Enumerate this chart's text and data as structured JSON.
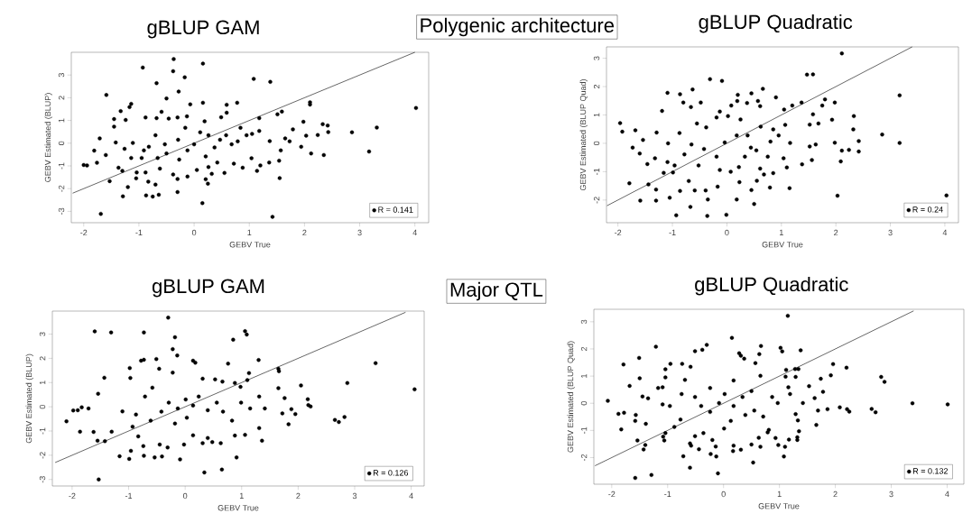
{
  "chart_data": [
    {
      "type": "scatter",
      "title": "gBLUP GAM",
      "xlabel": "GEBV True",
      "ylabel": "GEBV Estimated (BLUP)",
      "xlim": [
        -2.225,
        4.25
      ],
      "ylim": [
        -3.5,
        4.0
      ],
      "xticks": [
        -2,
        -1,
        0,
        1,
        2,
        3,
        4
      ],
      "yticks": [
        -3,
        -2,
        -1,
        0,
        1,
        2,
        3
      ],
      "legend": "bottom right",
      "annotations": [
        "Polygenic architecture"
      ],
      "series": [
        {
          "name": "R = 0.141",
          "color": "#000000",
          "x": [
            -0.93,
            -0.37,
            -0.38,
            0.16,
            -0.17,
            -0.68,
            -0.28,
            -0.5,
            -1.59,
            1.08,
            1.38,
            2.1,
            2.1,
            4.02,
            3.31,
            2.86,
            3.17,
            2.33,
            2.42,
            2.43,
            2.35,
            2.24,
            2.12,
            1.98,
            2.03,
            1.79,
            1.94,
            1.59,
            1.51,
            1.55,
            1.42,
            0.15,
            -1.69,
            -1.29,
            -1.2,
            -0.87,
            -0.75,
            -0.64,
            -0.3,
            -0.83,
            -0.7,
            -0.88,
            -1.04,
            -1.53,
            -2.0,
            -1.94,
            -1.76,
            -1.81,
            -1.71,
            -1.6,
            -1.42,
            -1.45,
            -1.45,
            -1.33,
            -1.17,
            -1.14,
            -1.24,
            -0.88,
            -0.68,
            -0.46,
            -0.59,
            -0.3,
            -0.13,
            -0.07,
            0.16,
            0.59,
            0.59,
            0.78,
            0.49,
            0.19,
            1.18,
            1.18,
            1.05,
            0.84,
            1.37,
            1.65,
            1.73,
            1.57,
            1.54,
            1.36,
            1.2,
            1.14,
            1.04,
            0.88,
            0.72,
            0.55,
            0.32,
            0.25,
            0.21,
            0.26,
            0.05,
            -0.12,
            -0.3,
            -0.38,
            -0.62,
            -1.05,
            -1.37,
            -1.3,
            -1.14,
            -1.26,
            -1.11,
            -0.95,
            -0.82,
            -0.66,
            -0.5,
            -0.29,
            -0.12,
            0,
            0.11,
            0.26,
            0.37,
            0.47,
            0.58,
            0.68,
            0.79,
            0.95,
            -0.53,
            -0.7,
            -0.91,
            -0.27,
            0.21,
            0.42,
            -0.16
          ],
          "values": [
            3.33,
            3.7,
            3.17,
            3.5,
            2.9,
            2.64,
            2.27,
            1.97,
            2.12,
            2.83,
            2.7,
            1.8,
            1.7,
            1.55,
            0.69,
            0.48,
            -0.37,
            0.84,
            0.78,
            0.49,
            -0.52,
            0.36,
            -0.45,
            0.94,
            0.33,
            0.61,
            -0.16,
            1.39,
            1.27,
            -1.54,
            -3.24,
            -2.64,
            -3.11,
            -2.34,
            -1.93,
            -2.3,
            -2.35,
            -2.27,
            -2.15,
            -1.69,
            -1.82,
            -1.29,
            -1.29,
            -1.67,
            -0.96,
            -0.98,
            -0.86,
            -0.33,
            0.21,
            -0.52,
            0.03,
            0.73,
            1.06,
            1.41,
            1.59,
            1.73,
            1.02,
            1.13,
            1.1,
            1.08,
            1.38,
            1.13,
            1.18,
            1.71,
            1.78,
            1.69,
            1.34,
            1.78,
            1.14,
            0.96,
            1.1,
            0.54,
            0.41,
            0.68,
            0.09,
            0.21,
            0.08,
            -0.32,
            -0.77,
            -0.85,
            -0.98,
            -1.22,
            -0.66,
            -1.08,
            -0.9,
            -1.31,
            -1.35,
            -1.78,
            -1.59,
            -1.05,
            -1.18,
            -1.47,
            -1.58,
            -1.38,
            -1.12,
            -1.55,
            -1.08,
            -1.22,
            -0.65,
            -0.25,
            0.01,
            -0.65,
            -0.16,
            -0.65,
            -0.45,
            0.15,
            -0.32,
            -0.05,
            0.48,
            0.35,
            -0.19,
            0.15,
            0.35,
            -0.05,
            0.08,
            0.35,
            -0.05,
            0.35,
            -0.32,
            -0.72,
            -0.58,
            -0.85,
            0.68
          ]
        },
        {
          "type": "line",
          "color": "#000000",
          "x": [
            -2.2,
            4.0
          ],
          "values": [
            -2.2,
            4.0
          ]
        }
      ]
    },
    {
      "type": "scatter",
      "title": "gBLUP Quadratic",
      "xlabel": "GEBV True",
      "ylabel": "GEBV Estimated (BLUP Quad)",
      "xlim": [
        -2.21,
        4.25
      ],
      "ylim": [
        -2.8,
        3.4
      ],
      "xticks": [
        -2,
        -1,
        0,
        1,
        2,
        3,
        4
      ],
      "yticks": [
        -2,
        -1,
        0,
        1,
        2,
        3
      ],
      "legend": "bottom right",
      "series": [
        {
          "name": "R = 0.24",
          "color": "#000000",
          "x": [
            2.11,
            3.17,
            4.03,
            2.03,
            1.58,
            1.47,
            1.98,
            1.8,
            1.75,
            1.93,
            2.33,
            2.32,
            2.42,
            2.42,
            2.24,
            2.11,
            2.09,
            1.98,
            2.85,
            3.17,
            1.58,
            1.68,
            1.52,
            1.63,
            1.52,
            1.56,
            1.38,
            1.15,
            1.1,
            1.04,
            1.37,
            1.2,
            1.05,
            0.9,
            0.66,
            0.45,
            -0.09,
            -0.31,
            -0.63,
            -0.86,
            -1.09,
            -1.19,
            -1.96,
            -1.92,
            -1.73,
            -1.79,
            -1.59,
            -1.3,
            -1.05,
            -0.93,
            -0.67,
            -0.36,
            -0.35,
            -0.01,
            0.18,
            0.5,
            0.45,
            0.79,
            0.55,
            -0.17,
            -0.39,
            -0.59,
            -0.7,
            -0.86,
            -1.3,
            -1.44,
            -1.16,
            -1.09,
            -0.96,
            -1.32,
            -1.46,
            -1.6,
            -1.68,
            -1.54,
            -1.29,
            -1.08,
            -0.87,
            -0.8,
            -0.66,
            -0.48,
            -0.55,
            -0.38,
            -0.19,
            -0.13,
            0.02,
            0.08,
            0.2,
            0.19,
            0.37,
            0.57,
            0.61,
            0.25,
            0.18,
            -0.04,
            -0.19,
            -0.42,
            -0.65,
            -0.78,
            -0.52,
            -0.13,
            0.07,
            0.22,
            0.33,
            0.44,
            0.54,
            0.75,
            0.61,
            0.68,
            0.85,
            0.8,
            0.95,
            0.85,
            1.16,
            1.07,
            0.62,
            0.38,
            0.23,
            -0.99
          ],
          "values": [
            3.17,
            1.69,
            -1.84,
            -1.85,
            2.43,
            2.42,
            1.44,
            1.55,
            1.33,
            0.83,
            0.96,
            0.49,
            0.08,
            -0.29,
            -0.23,
            -0.26,
            -0.64,
            0.02,
            0.31,
            0.01,
            1.02,
            0.7,
            0.66,
            -0.04,
            -0.11,
            -0.59,
            -0.74,
            -1.58,
            -0.85,
            -0.53,
            1.44,
            1.33,
            1.19,
            1.62,
            1.92,
            1.76,
            2.2,
            2.26,
            1.9,
            1.73,
            1.78,
            1.14,
            0.71,
            0.41,
            -0.15,
            -1.41,
            -2.02,
            -2.02,
            -1.92,
            -2.54,
            -2.24,
            -2.56,
            -1.98,
            -2.52,
            -1.98,
            -2.14,
            -1.65,
            -1.56,
            -1.32,
            -1.53,
            -1.66,
            -1.66,
            -1.33,
            -1.68,
            -1.63,
            -1.45,
            -1.04,
            -0.66,
            -0.78,
            -0.53,
            -0.73,
            -0.36,
            0.46,
            0.12,
            0.38,
            0.0,
            0.36,
            1.44,
            1.28,
            1.44,
            0.7,
            0.56,
            0.91,
            1.12,
            0.96,
            1.33,
            1.71,
            1.49,
            1.42,
            1.49,
            1.31,
            0.84,
            0.28,
            0.03,
            -0.47,
            -0.2,
            -0.04,
            -0.39,
            -0.78,
            -0.94,
            -1.0,
            -0.84,
            -0.47,
            -0.15,
            -0.25,
            -0.47,
            -0.89,
            -1.1,
            -1.05,
            0.06,
            0.28,
            0.49,
            0.01,
            0.65,
            0.59,
            0.28,
            -1.37,
            -1.03
          ]
        },
        {
          "type": "line",
          "color": "#000000",
          "x": [
            -2.2,
            3.4
          ],
          "values": [
            -2.2,
            3.4
          ]
        }
      ]
    },
    {
      "type": "scatter",
      "title": "gBLUP GAM",
      "xlabel": "GEBV True",
      "ylabel": "GEBV Estimated (BLUP)",
      "xlim": [
        -2.35,
        4.23
      ],
      "ylim": [
        -3.27,
        3.95
      ],
      "xticks": [
        -2,
        -1,
        0,
        1,
        2,
        3,
        4
      ],
      "yticks": [
        -3,
        -2,
        -1,
        0,
        1,
        2,
        3
      ],
      "legend": "bottom right",
      "annotations": [
        "Major QTL"
      ],
      "series": [
        {
          "name": "R = 0.126",
          "color": "#000000",
          "x": [
            -0.3,
            -1.6,
            -1.31,
            -0.73,
            -0.18,
            -0.22,
            -0.14,
            0.85,
            1.06,
            1.09,
            1.3,
            0.76,
            4.06,
            3.37,
            -2.1,
            -1.86,
            -1.53,
            -1.55,
            -1.42,
            -1.43,
            -1.54,
            -1.9,
            -1.71,
            -1.83,
            -1.98,
            -1.62,
            -1.3,
            -1.16,
            -0.99,
            -0.96,
            -0.98,
            -0.97,
            -0.78,
            -0.73,
            -0.51,
            -0.46,
            -0.22,
            0.14,
            0.18,
            0.31,
            0.53,
            0.66,
            0.88,
            0.98,
            1.13,
            1.1,
            1.65,
            1.66,
            1.65,
            2.05,
            2.17,
            2.18,
            2.22,
            1.72,
            1.76,
            1.88,
            1.95,
            1.83,
            2.65,
            2.72,
            2.82,
            2.87,
            1.36,
            1.31,
            1.06,
            0.91,
            0.65,
            0.34,
            -0.09,
            -0.02,
            0.31,
            0.48,
            0.63,
            0.4,
            0.14,
            -0.31,
            -0.45,
            -0.54,
            -0.73,
            -0.74,
            -0.41,
            -0.83,
            -1.11,
            -0.87,
            -0.71,
            -0.58,
            -0.42,
            -0.29,
            -0.13,
            0.01,
            0.14,
            0.24,
            0.4,
            0.56,
            0.67,
            0.83,
            0.99,
            1.15,
            1.31,
            1.41,
            0.88,
            -0.18,
            0.03,
            -0.61,
            -0.93
          ],
          "values": [
            3.68,
            3.11,
            3.07,
            3.07,
            2.87,
            2.38,
            2.12,
            2.77,
            3.12,
            2.98,
            1.93,
            1.78,
            0.72,
            1.8,
            -0.6,
            -1.03,
            -3.0,
            -1.4,
            -1.42,
            1.2,
            0.54,
            -0.14,
            -0.07,
            -0.02,
            -0.15,
            -1.04,
            -1.03,
            -2.04,
            -2.15,
            -1.82,
            1.6,
            1.19,
            1.9,
            1.94,
            1.97,
            1.57,
            1.41,
            1.9,
            1.82,
            1.16,
            1.13,
            1.04,
            0.98,
            0.82,
            1.39,
            1.1,
            1.57,
            1.47,
            0.77,
            0.88,
            0.31,
            0.07,
            0.01,
            -0.27,
            0.36,
            -0.1,
            -0.3,
            -0.72,
            -0.54,
            -0.63,
            -0.42,
            0.98,
            -1.4,
            -0.88,
            -1.16,
            -2.09,
            -2.59,
            -2.71,
            -2.17,
            -1.56,
            -1.5,
            -1.46,
            -1.5,
            -1.29,
            -1.18,
            -1.68,
            -1.56,
            -2.09,
            -2.02,
            -1.62,
            -2.05,
            -1.22,
            -0.19,
            -0.32,
            0.42,
            0.79,
            -0.2,
            0.17,
            -0.07,
            0.3,
            0.05,
            0.42,
            -0.14,
            0.17,
            -0.2,
            -0.57,
            0.17,
            -0.07,
            0.42,
            -0.07,
            -1.19,
            -0.69,
            -0.45,
            -0.57,
            -0.82
          ]
        },
        {
          "type": "line",
          "color": "#000000",
          "x": [
            -2.3,
            3.9
          ],
          "values": [
            -2.3,
            3.9
          ]
        }
      ]
    },
    {
      "type": "scatter",
      "title": "gBLUP Quadratic",
      "xlabel": "GEBV True",
      "ylabel": "GEBV Estimated (BLUP Quad)",
      "xlim": [
        -2.32,
        4.3
      ],
      "ylim": [
        -2.98,
        3.46
      ],
      "xticks": [
        -2,
        -1,
        0,
        1,
        2,
        3,
        4
      ],
      "yticks": [
        -2,
        -1,
        0,
        1,
        2,
        3
      ],
      "legend": "bottom right",
      "series": [
        {
          "name": "R = 0.132",
          "color": "#000000",
          "x": [
            1.15,
            0.15,
            -1.21,
            -0.3,
            -0.51,
            -0.38,
            0.67,
            1.02,
            1.05,
            1.38,
            0.28,
            0.31,
            0.37,
            0.64,
            0.57,
            -1.51,
            -1.79,
            -1.5,
            -1.68,
            -2.07,
            -1.88,
            -1.83,
            -1.78,
            -1.57,
            -1.58,
            -1.54,
            -1.43,
            -1.58,
            -1.29,
            -1.4,
            -1.39,
            -1.45,
            -1.35,
            -1.17,
            -1.09,
            -1.04,
            -1.04,
            -0.95,
            -0.74,
            -0.59,
            -0.69,
            -0.75,
            -0.96,
            -1.09,
            -1.04,
            -1.06,
            -1.08,
            -0.88,
            -0.77,
            -0.72,
            -0.6,
            -0.6,
            -0.58,
            -0.51,
            -0.44,
            -0.36,
            -0.23,
            -0.2,
            -0.14,
            -0.13,
            -0.1,
            0.01,
            0.17,
            0.18,
            0.31,
            0.53,
            0.5,
            0.66,
            0.63,
            0.79,
            0.81,
            0.93,
            0.98,
            1.08,
            1.1,
            1.17,
            1.32,
            1.32,
            1.33,
            1.35,
            1.29,
            1.42,
            1.29,
            1.28,
            1.34,
            1.12,
            1.11,
            1.16,
            1.19,
            1.63,
            1.53,
            1.69,
            1.66,
            1.74,
            1.78,
            1.86,
            1.92,
            1.96,
            2.08,
            2.2,
            2.21,
            2.25,
            2.65,
            2.72,
            2.82,
            2.88,
            3.38,
            4.01,
            0.87,
            0.97,
            0.66,
            0.5,
            0.34,
            0.18,
            0.02,
            -0.08,
            -0.24,
            -0.4,
            -0.51,
            -0.24,
            0.39,
            0.55,
            0.71,
            0.18,
            0.13
          ],
          "values": [
            3.22,
            2.41,
            2.08,
            2.15,
            1.92,
            1.97,
            2.11,
            2.04,
            1.91,
            1.95,
            1.84,
            1.75,
            1.64,
            1.81,
            1.48,
            1.67,
            1.43,
            0.92,
            0.64,
            0.09,
            -0.39,
            -0.96,
            -0.35,
            -0.43,
            -0.65,
            -1.37,
            -1.7,
            -2.75,
            -2.64,
            -1.54,
            -0.76,
            0.25,
            0.18,
            0.56,
            0.59,
            0.95,
            1.25,
            1.45,
            1.45,
            1.34,
            0.86,
            0.34,
            -0.1,
            -0.04,
            -1.1,
            -1.37,
            -1.23,
            -0.87,
            -0.6,
            -1.95,
            -2.37,
            -1.48,
            -1.56,
            -1.21,
            -1.69,
            -1.1,
            -1.87,
            -1.35,
            -1.59,
            -1.96,
            -2.58,
            -0.93,
            -1.76,
            -1.56,
            -1.71,
            -2.18,
            -1.52,
            -1.6,
            -1.27,
            -1.07,
            -0.98,
            -1.28,
            -1.54,
            -1.96,
            -1.6,
            -1.34,
            -1.25,
            -1.35,
            -0.63,
            -1.03,
            -0.4,
            0.01,
            0.97,
            1.26,
            1.26,
            1.23,
            0.98,
            0.59,
            0.34,
            0.19,
            0.63,
            -0.27,
            -0.8,
            0.9,
            0.42,
            -0.22,
            1.03,
            1.44,
            -0.15,
            1.31,
            -0.22,
            -0.31,
            -0.21,
            -0.33,
            0.97,
            0.79,
            0.0,
            -0.04,
            0.23,
            0.01,
            1.01,
            0.45,
            0.23,
            -0.1,
            0.34,
            0.01,
            0.56,
            -0.1,
            0.23,
            -0.32,
            -0.43,
            -0.27,
            -0.49,
            0.84,
            -0.65
          ]
        },
        {
          "type": "line",
          "color": "#000000",
          "x": [
            -2.3,
            3.4
          ],
          "values": [
            -2.3,
            3.4
          ]
        }
      ]
    }
  ]
}
